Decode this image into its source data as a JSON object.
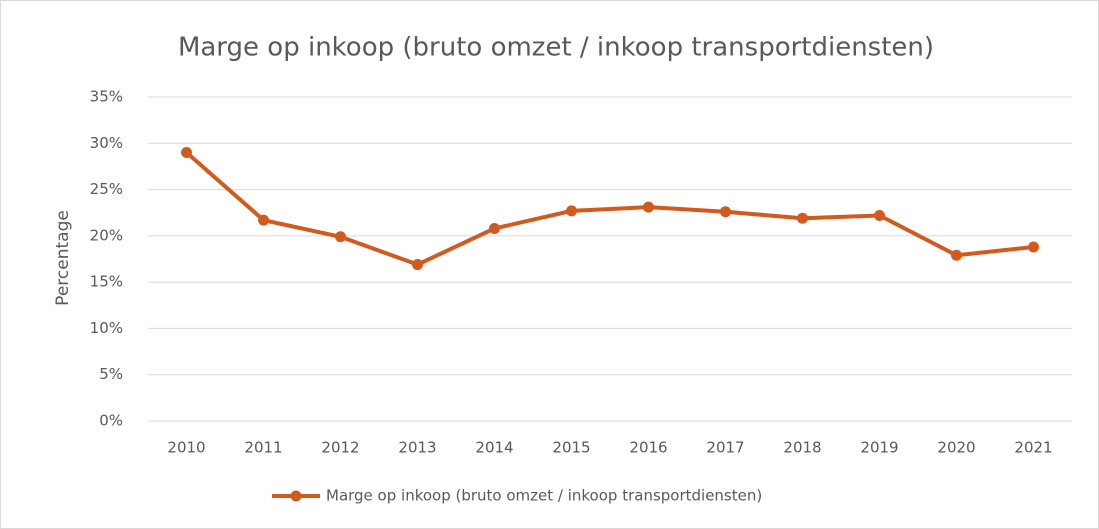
{
  "chart_data": {
    "type": "line",
    "title": "Marge op inkoop (bruto omzet / inkoop transportdiensten)",
    "y_label": "Percentage",
    "categories": [
      "2010",
      "2011",
      "2012",
      "2013",
      "2014",
      "2015",
      "2016",
      "2017",
      "2018",
      "2019",
      "2020",
      "2021"
    ],
    "series": [
      {
        "name": "Marge op inkoop (bruto omzet / inkoop transportdiensten)",
        "color": "#d35a1e",
        "values": [
          29.0,
          21.7,
          19.9,
          16.9,
          20.8,
          22.7,
          23.1,
          22.6,
          21.9,
          22.2,
          17.9,
          18.8
        ]
      }
    ],
    "ylim": [
      0,
      35
    ],
    "yticks": [
      {
        "value": 0,
        "label": "0%"
      },
      {
        "value": 5,
        "label": "5%"
      },
      {
        "value": 10,
        "label": "10%"
      },
      {
        "value": 15,
        "label": "15%"
      },
      {
        "value": 20,
        "label": "20%"
      },
      {
        "value": 25,
        "label": "25%"
      },
      {
        "value": 30,
        "label": "30%"
      },
      {
        "value": 35,
        "label": "35%"
      }
    ],
    "grid": true,
    "legend": "bottom"
  }
}
